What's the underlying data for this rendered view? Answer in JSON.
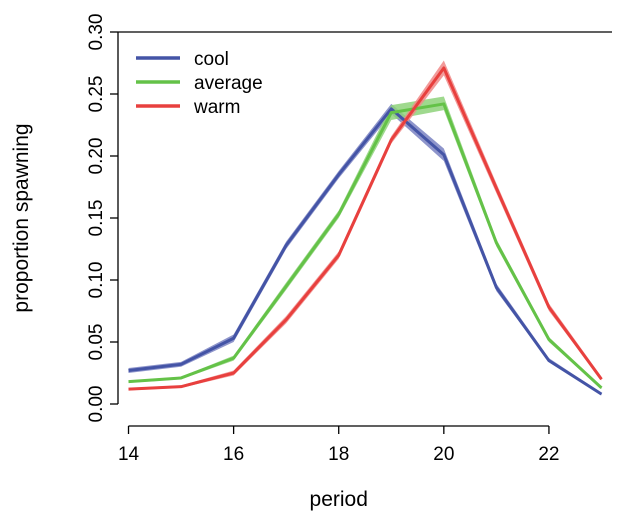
{
  "chart_data": {
    "type": "line",
    "title": "",
    "xlabel": "period",
    "ylabel": "proportion spawning",
    "xlim": [
      13.8,
      23.2
    ],
    "ylim": [
      0,
      0.3
    ],
    "x_ticks": [
      14,
      16,
      18,
      20,
      22
    ],
    "x_tick_labels": [
      "14",
      "16",
      "18",
      "20",
      "22"
    ],
    "y_ticks": [
      0,
      0.05,
      0.1,
      0.15,
      0.2,
      0.25,
      0.3
    ],
    "y_tick_labels": [
      "0.00",
      "0.05",
      "0.10",
      "0.15",
      "0.20",
      "0.25",
      "0.30"
    ],
    "legend_position": "top-left",
    "x": [
      14,
      15,
      16,
      17,
      18,
      19,
      20,
      21,
      22,
      23
    ],
    "series": [
      {
        "name": "cool",
        "color": "#4454a6",
        "band_color": "#7a83c2",
        "values": [
          0.027,
          0.032,
          0.053,
          0.128,
          0.185,
          0.238,
          0.201,
          0.094,
          0.035,
          0.008
        ],
        "lower": [
          0.025,
          0.03,
          0.05,
          0.125,
          0.182,
          0.234,
          0.196,
          0.091,
          0.034,
          0.007
        ],
        "upper": [
          0.029,
          0.034,
          0.056,
          0.131,
          0.188,
          0.242,
          0.206,
          0.097,
          0.037,
          0.009
        ]
      },
      {
        "name": "average",
        "color": "#64c248",
        "band_color": "#8ed27a",
        "values": [
          0.018,
          0.021,
          0.037,
          0.095,
          0.153,
          0.235,
          0.242,
          0.13,
          0.052,
          0.013
        ],
        "lower": [
          0.017,
          0.02,
          0.035,
          0.092,
          0.15,
          0.229,
          0.237,
          0.127,
          0.05,
          0.012
        ],
        "upper": [
          0.019,
          0.022,
          0.039,
          0.098,
          0.156,
          0.241,
          0.248,
          0.133,
          0.054,
          0.014
        ]
      },
      {
        "name": "warm",
        "color": "#e8403e",
        "band_color": "#f08a88",
        "values": [
          0.012,
          0.014,
          0.025,
          0.068,
          0.12,
          0.213,
          0.271,
          0.174,
          0.078,
          0.02
        ],
        "lower": [
          0.011,
          0.013,
          0.023,
          0.065,
          0.117,
          0.21,
          0.265,
          0.17,
          0.075,
          0.019
        ],
        "upper": [
          0.013,
          0.015,
          0.027,
          0.071,
          0.123,
          0.216,
          0.277,
          0.178,
          0.081,
          0.022
        ]
      }
    ]
  }
}
